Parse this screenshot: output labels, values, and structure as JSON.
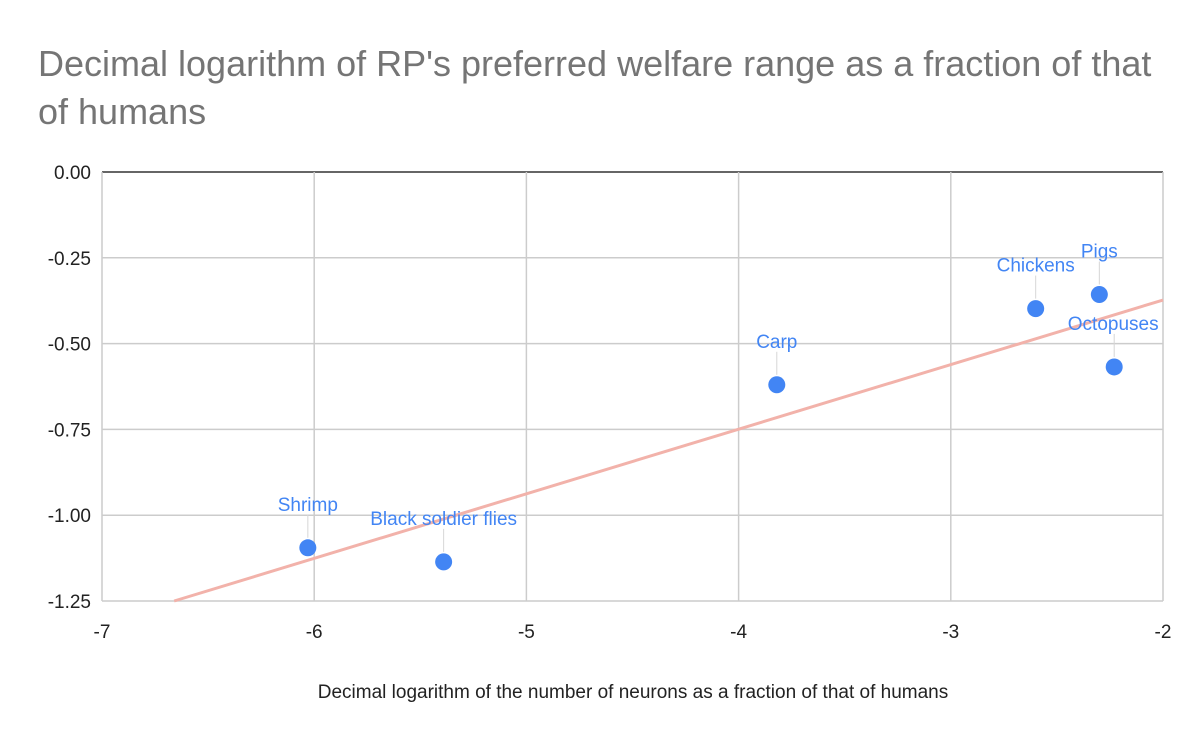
{
  "chart_data": {
    "type": "scatter",
    "title": "Decimal logarithm of RP's preferred welfare range as a fraction of that of humans",
    "xlabel": "Decimal logarithm of the number of neurons as a fraction of that of humans",
    "ylabel": "",
    "xlim": [
      -7,
      -2
    ],
    "ylim": [
      -1.25,
      0
    ],
    "xticks": [
      -7,
      -6,
      -5,
      -4,
      -3,
      -2
    ],
    "xtick_labels": [
      "-7",
      "-6",
      "-5",
      "-4",
      "-3",
      "-2"
    ],
    "yticks": [
      0,
      -0.25,
      -0.5,
      -0.75,
      -1.0,
      -1.25
    ],
    "ytick_labels": [
      "0.00",
      "-0.25",
      "-0.50",
      "-0.75",
      "-1.00",
      "-1.25"
    ],
    "grid": true,
    "points": [
      {
        "label": "Shrimp",
        "x": -6.03,
        "y": -1.095
      },
      {
        "label": "Black soldier flies",
        "x": -5.39,
        "y": -1.136
      },
      {
        "label": "Carp",
        "x": -3.82,
        "y": -0.62
      },
      {
        "label": "Chickens",
        "x": -2.6,
        "y": -0.398
      },
      {
        "label": "Pigs",
        "x": -2.3,
        "y": -0.357
      },
      {
        "label": "Octopuses",
        "x": -2.23,
        "y": -0.568
      }
    ],
    "trendline": {
      "type": "linear",
      "x_start": -6.66,
      "y_start": -1.25,
      "x_end": -2.0,
      "y_end": -0.373
    },
    "colors": {
      "point": "#4285f4",
      "label": "#4285f4",
      "trendline": "#f2b2aa",
      "grid": "#cccccc",
      "axis": "#333333"
    }
  }
}
